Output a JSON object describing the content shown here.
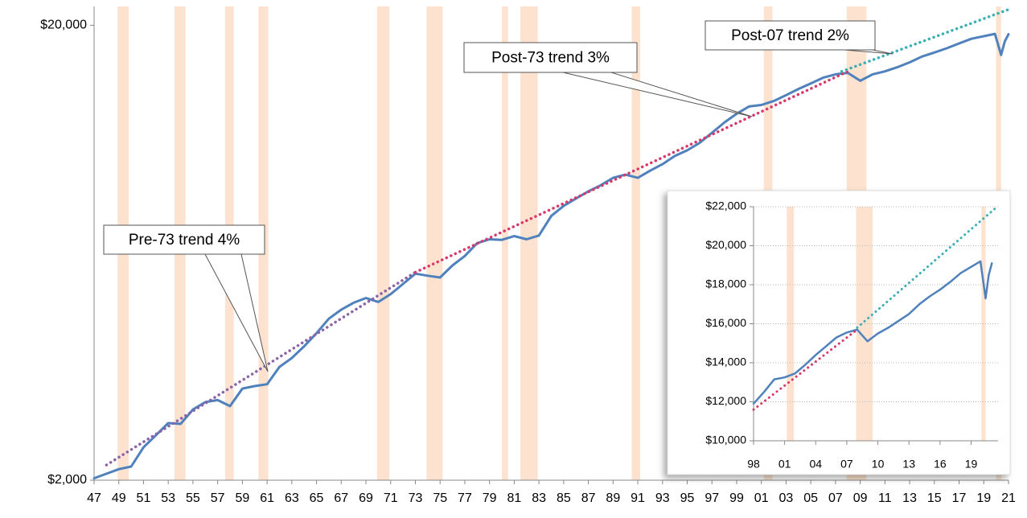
{
  "chart_data": [
    {
      "type": "line",
      "log_scale": true,
      "xlim": [
        1947,
        2021
      ],
      "ylim": [
        2000,
        22000
      ],
      "yticks": [
        {
          "value": 2000,
          "label": "$2,000"
        },
        {
          "value": 20000,
          "label": "$20,000"
        }
      ],
      "xticks": [
        {
          "value": 1947,
          "label": "47"
        },
        {
          "value": 1949,
          "label": "49"
        },
        {
          "value": 1951,
          "label": "51"
        },
        {
          "value": 1953,
          "label": "53"
        },
        {
          "value": 1955,
          "label": "55"
        },
        {
          "value": 1957,
          "label": "57"
        },
        {
          "value": 1959,
          "label": "59"
        },
        {
          "value": 1961,
          "label": "61"
        },
        {
          "value": 1963,
          "label": "63"
        },
        {
          "value": 1965,
          "label": "65"
        },
        {
          "value": 1967,
          "label": "67"
        },
        {
          "value": 1969,
          "label": "69"
        },
        {
          "value": 1971,
          "label": "71"
        },
        {
          "value": 1973,
          "label": "73"
        },
        {
          "value": 1975,
          "label": "75"
        },
        {
          "value": 1977,
          "label": "77"
        },
        {
          "value": 1979,
          "label": "79"
        },
        {
          "value": 1981,
          "label": "81"
        },
        {
          "value": 1983,
          "label": "83"
        },
        {
          "value": 1985,
          "label": "85"
        },
        {
          "value": 1987,
          "label": "87"
        },
        {
          "value": 1989,
          "label": "89"
        },
        {
          "value": 1991,
          "label": "91"
        },
        {
          "value": 1993,
          "label": "93"
        },
        {
          "value": 1995,
          "label": "95"
        },
        {
          "value": 1997,
          "label": "97"
        },
        {
          "value": 1999,
          "label": "99"
        },
        {
          "value": 2001,
          "label": "01"
        },
        {
          "value": 2003,
          "label": "03"
        },
        {
          "value": 2005,
          "label": "05"
        },
        {
          "value": 2007,
          "label": "07"
        },
        {
          "value": 2009,
          "label": "09"
        },
        {
          "value": 2011,
          "label": "11"
        },
        {
          "value": 2013,
          "label": "13"
        },
        {
          "value": 2015,
          "label": "15"
        },
        {
          "value": 2017,
          "label": "17"
        },
        {
          "value": 2019,
          "label": "19"
        },
        {
          "value": 2021,
          "label": "21"
        }
      ],
      "grid": false,
      "recession_color": "#fde3cf",
      "recessions": [
        [
          1948.9,
          1949.8
        ],
        [
          1953.5,
          1954.4
        ],
        [
          1957.6,
          1958.3
        ],
        [
          1960.3,
          1961.1
        ],
        [
          1969.9,
          1970.9
        ],
        [
          1973.9,
          1975.2
        ],
        [
          1980.0,
          1980.5
        ],
        [
          1981.5,
          1982.9
        ],
        [
          1990.5,
          1991.2
        ],
        [
          2001.2,
          2001.9
        ],
        [
          2007.9,
          2009.5
        ],
        [
          2020.0,
          2020.4
        ]
      ],
      "series": [
        {
          "color": "#4f81bd",
          "x": [
            1947,
            1949,
            1950,
            1951,
            1952,
            1953,
            1954,
            1955,
            1956,
            1957,
            1958,
            1959,
            1960,
            1961,
            1962,
            1963,
            1964,
            1965,
            1966,
            1967,
            1968,
            1969,
            1970,
            1971,
            1972,
            1973,
            1974,
            1975,
            1976,
            1977,
            1978,
            1979,
            1980,
            1981,
            1982,
            1983,
            1984,
            1985,
            1986,
            1987,
            1988,
            1989,
            1990,
            1991,
            1992,
            1993,
            1994,
            1995,
            1996,
            1997,
            1998,
            1999,
            2000,
            2001,
            2002,
            2003,
            2004,
            2005,
            2006,
            2007,
            2008,
            2009,
            2010,
            2011,
            2012,
            2013,
            2014,
            2015,
            2016,
            2017,
            2018,
            2019.9,
            2020.4,
            2020.7,
            2021
          ],
          "values": [
            2020,
            2115,
            2143,
            2362,
            2510,
            2670,
            2660,
            2860,
            2970,
            3000,
            2910,
            3180,
            3220,
            3250,
            3550,
            3710,
            3940,
            4210,
            4530,
            4740,
            4910,
            5030,
            4930,
            5130,
            5400,
            5690,
            5630,
            5580,
            5930,
            6220,
            6640,
            6770,
            6750,
            6880,
            6770,
            6900,
            7620,
            8020,
            8320,
            8630,
            8900,
            9240,
            9390,
            9240,
            9580,
            9900,
            10320,
            10620,
            11030,
            11600,
            12220,
            12780,
            13260,
            13360,
            13630,
            14040,
            14490,
            14900,
            15340,
            15600,
            15720,
            15100,
            15600,
            15840,
            16170,
            16580,
            17070,
            17420,
            17800,
            18240,
            18680,
            19150,
            17210,
            18440,
            19110
          ]
        },
        {
          "name": "Pre-73 trend 4%",
          "color": "#8a63a8",
          "dotted": true,
          "x": [
            1948,
            1973
          ],
          "values": [
            2160,
            5730
          ]
        },
        {
          "name": "Post-73 trend 3%",
          "color": "#d9386a",
          "dotted": true,
          "x": [
            1973,
            2008
          ],
          "values": [
            5730,
            15830
          ]
        },
        {
          "name": "Post-07 trend 2%",
          "color": "#3aafb5",
          "dotted": true,
          "x": [
            2007.5,
            2021
          ],
          "values": [
            15830,
            21660
          ]
        }
      ]
    },
    {
      "type": "line",
      "log_scale": false,
      "xlim": [
        1998,
        2021.6
      ],
      "ylim": [
        10000,
        22000
      ],
      "yticks": [
        {
          "value": 10000,
          "label": "$10,000"
        },
        {
          "value": 12000,
          "label": "$12,000"
        },
        {
          "value": 14000,
          "label": "$14,000"
        },
        {
          "value": 16000,
          "label": "$16,000"
        },
        {
          "value": 18000,
          "label": "$18,000"
        },
        {
          "value": 20000,
          "label": "$20,000"
        },
        {
          "value": 22000,
          "label": "$22,000"
        }
      ],
      "xticks": [
        {
          "value": 1998,
          "label": "98"
        },
        {
          "value": 2001,
          "label": "01"
        },
        {
          "value": 2004,
          "label": "04"
        },
        {
          "value": 2007,
          "label": "07"
        },
        {
          "value": 2010,
          "label": "10"
        },
        {
          "value": 2013,
          "label": "13"
        },
        {
          "value": 2016,
          "label": "16"
        },
        {
          "value": 2019,
          "label": "19"
        }
      ],
      "grid": true,
      "recession_color": "#fde3cf",
      "recessions": [
        [
          2001.2,
          2001.9
        ],
        [
          2007.9,
          2009.5
        ],
        [
          2020.0,
          2020.4
        ]
      ],
      "series": [
        {
          "color": "#4f81bd",
          "x": [
            1998,
            1999,
            2000,
            2001,
            2002,
            2003,
            2004,
            2005,
            2006,
            2007,
            2008,
            2009,
            2010,
            2011,
            2012,
            2013,
            2014,
            2015,
            2016,
            2017,
            2018,
            2019.9,
            2020.4,
            2020.7,
            2021
          ],
          "values": [
            11900,
            12500,
            13150,
            13250,
            13450,
            13900,
            14400,
            14850,
            15300,
            15550,
            15700,
            15100,
            15500,
            15800,
            16150,
            16500,
            17000,
            17400,
            17750,
            18150,
            18600,
            19200,
            17300,
            18500,
            19100
          ]
        },
        {
          "color": "#d9386a",
          "dotted": true,
          "x": [
            1998,
            2008
          ],
          "values": [
            11600,
            15700
          ]
        },
        {
          "color": "#3aafb5",
          "dotted": true,
          "x": [
            2008,
            2021.3
          ],
          "values": [
            15800,
            21900
          ]
        }
      ]
    }
  ]
}
